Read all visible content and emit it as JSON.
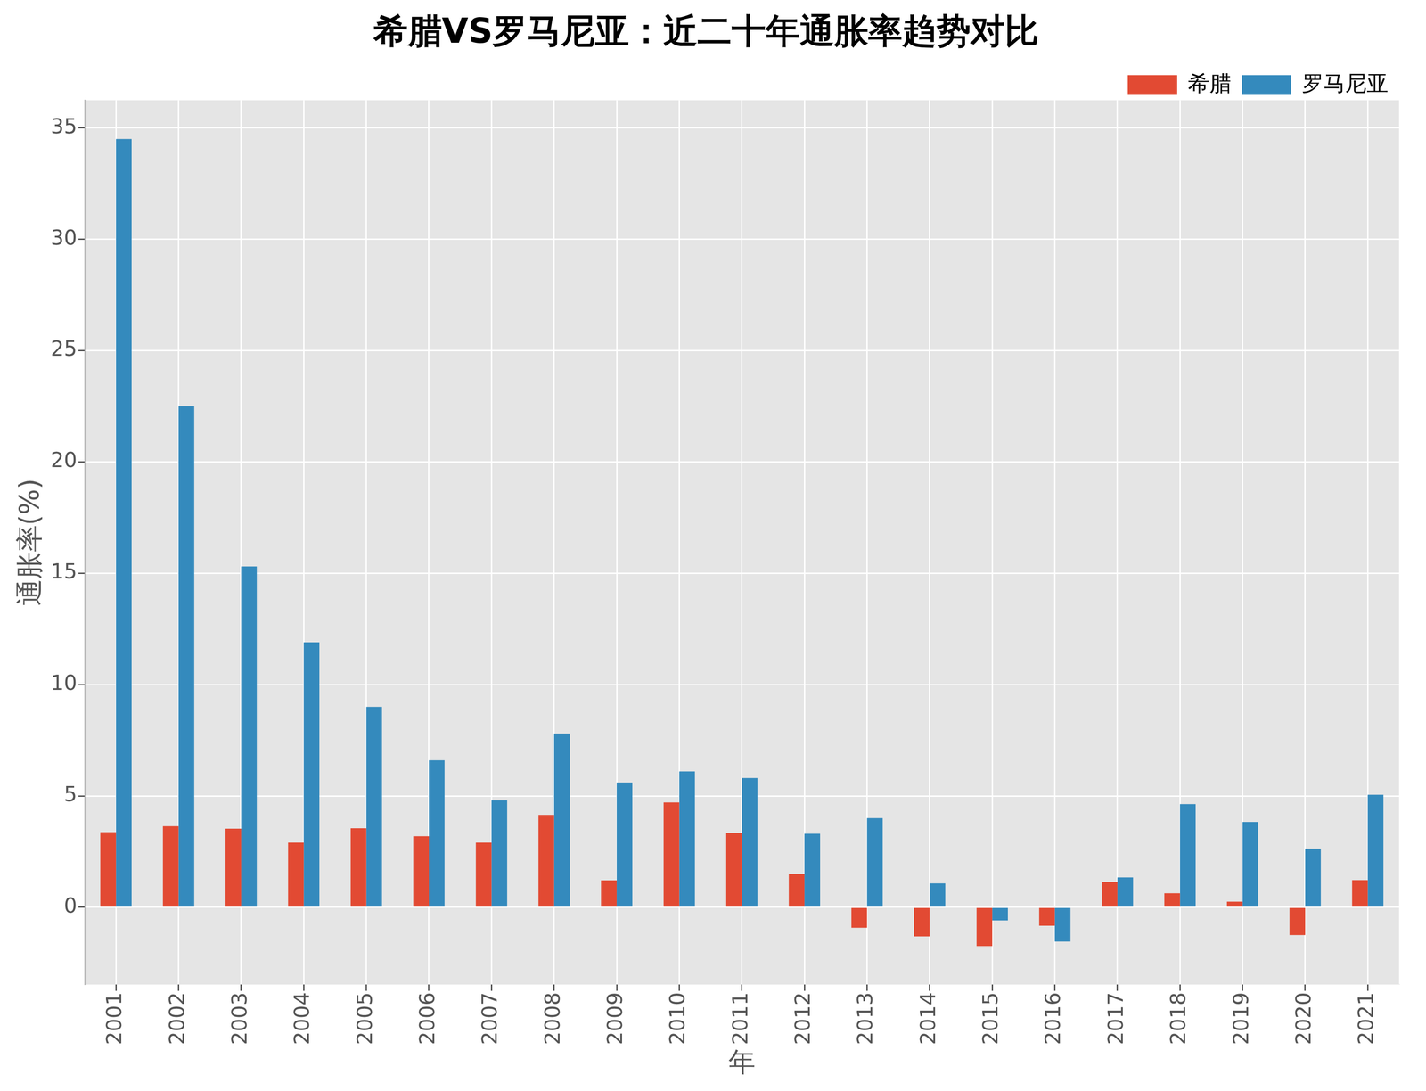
{
  "chart_data": {
    "type": "bar",
    "title": "希腊VS罗马尼亚：近二十年通胀率趋势对比",
    "x_label": "年",
    "y_label": "通胀率(%)",
    "categories": [
      "2001",
      "2002",
      "2003",
      "2004",
      "2005",
      "2006",
      "2007",
      "2008",
      "2009",
      "2010",
      "2011",
      "2012",
      "2013",
      "2014",
      "2015",
      "2016",
      "2017",
      "2018",
      "2019",
      "2020",
      "2021"
    ],
    "series": [
      {
        "name": "希腊",
        "color": "#E24A33",
        "values": [
          3.37,
          3.64,
          3.53,
          2.9,
          3.55,
          3.19,
          2.9,
          4.15,
          1.21,
          4.71,
          3.33,
          1.5,
          -0.92,
          -1.31,
          -1.74,
          -0.83,
          1.14,
          0.63,
          0.25,
          -1.25,
          1.22
        ]
      },
      {
        "name": "罗马尼亚",
        "color": "#348ABD",
        "values": [
          34.5,
          22.5,
          15.3,
          11.9,
          9.0,
          6.6,
          4.8,
          7.8,
          5.6,
          6.1,
          5.8,
          3.3,
          4.0,
          1.07,
          -0.59,
          -1.54,
          1.34,
          4.63,
          3.83,
          2.63,
          5.05
        ]
      }
    ],
    "ylim": [
      -3.47,
      36.24
    ],
    "yticks": [
      0,
      5,
      10,
      15,
      20,
      25,
      30,
      35
    ],
    "grid": true,
    "legend": "upper right"
  }
}
